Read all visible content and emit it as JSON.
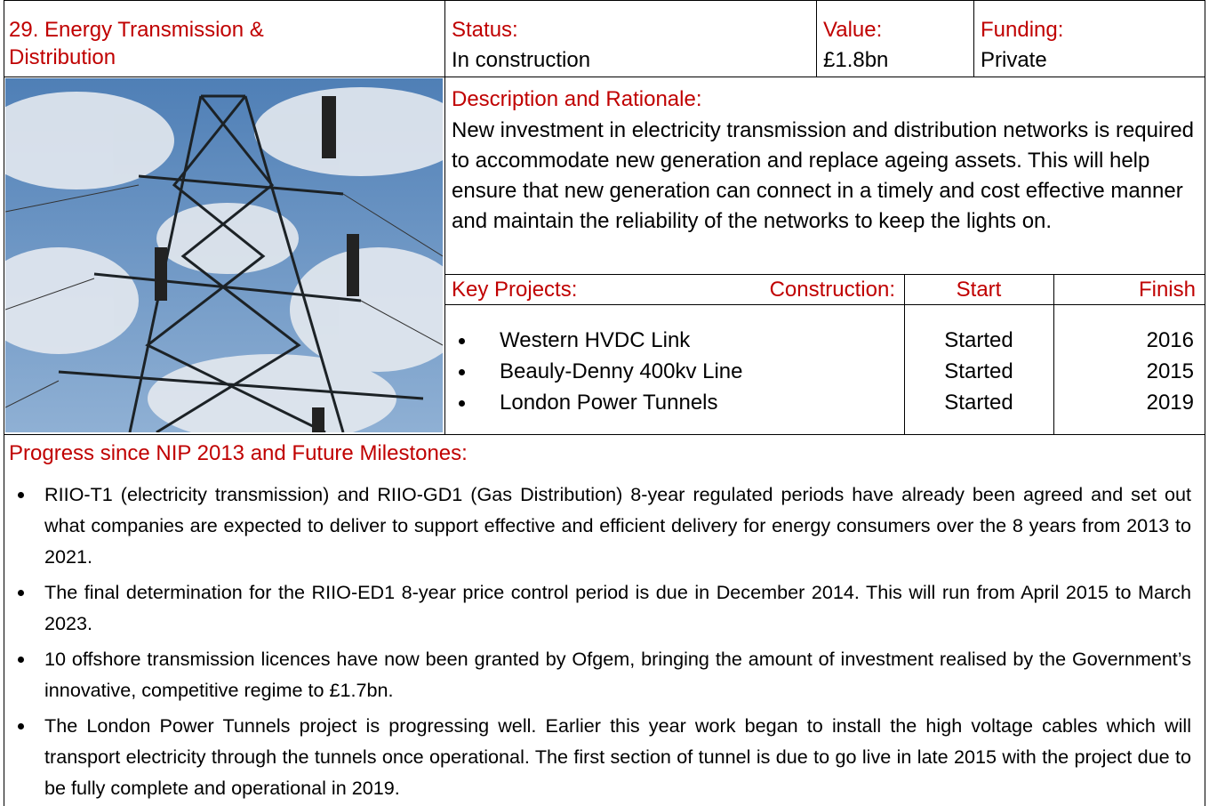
{
  "header": {
    "title": "29. Energy Transmission & Distribution",
    "status_label": "Status:",
    "status": "In construction",
    "value_label": "Value:",
    "value": "£1.8bn",
    "funding_label": "Funding:",
    "funding": "Private"
  },
  "description": {
    "heading": "Description and Rationale:",
    "text": "New investment in electricity transmission and distribution networks is required to accommodate new generation and replace ageing assets. This will help ensure that new generation can connect in a timely and cost effective manner and maintain the reliability of the networks to keep the lights on."
  },
  "key_projects": {
    "headers": [
      "Key Projects:",
      "Construction:",
      "Start",
      "Finish"
    ],
    "rows": [
      [
        "Western HVDC Link",
        "Started",
        "2016"
      ],
      [
        "Beauly-Denny 400kv Line",
        "Started",
        "2015"
      ],
      [
        "London Power Tunnels",
        "Started",
        "2019"
      ]
    ]
  },
  "progress": {
    "heading": "Progress since NIP 2013 and Future Milestones:",
    "bullets": [
      "RIIO-T1 (electricity transmission) and RIIO-GD1 (Gas Distribution) 8-year regulated periods have already been agreed and set out what companies are expected to deliver to support effective and efficient delivery for energy consumers over the 8 years from 2013 to 2021.",
      "The final determination for the RIIO-ED1 8-year price control period is due in December 2014. This will run from April 2015 to March 2023.",
      "10 offshore transmission licences have now been granted by Ofgem, bringing the amount of investment realised by the Government’s innovative, competitive regime to £1.7bn.",
      "The London Power Tunnels project is progressing well. Earlier this year work began to install the high voltage cables which will transport electricity through the tunnels once operational. The first section of tunnel is due to go live in late 2015 with the project due to be fully complete and operational in 2019."
    ]
  }
}
